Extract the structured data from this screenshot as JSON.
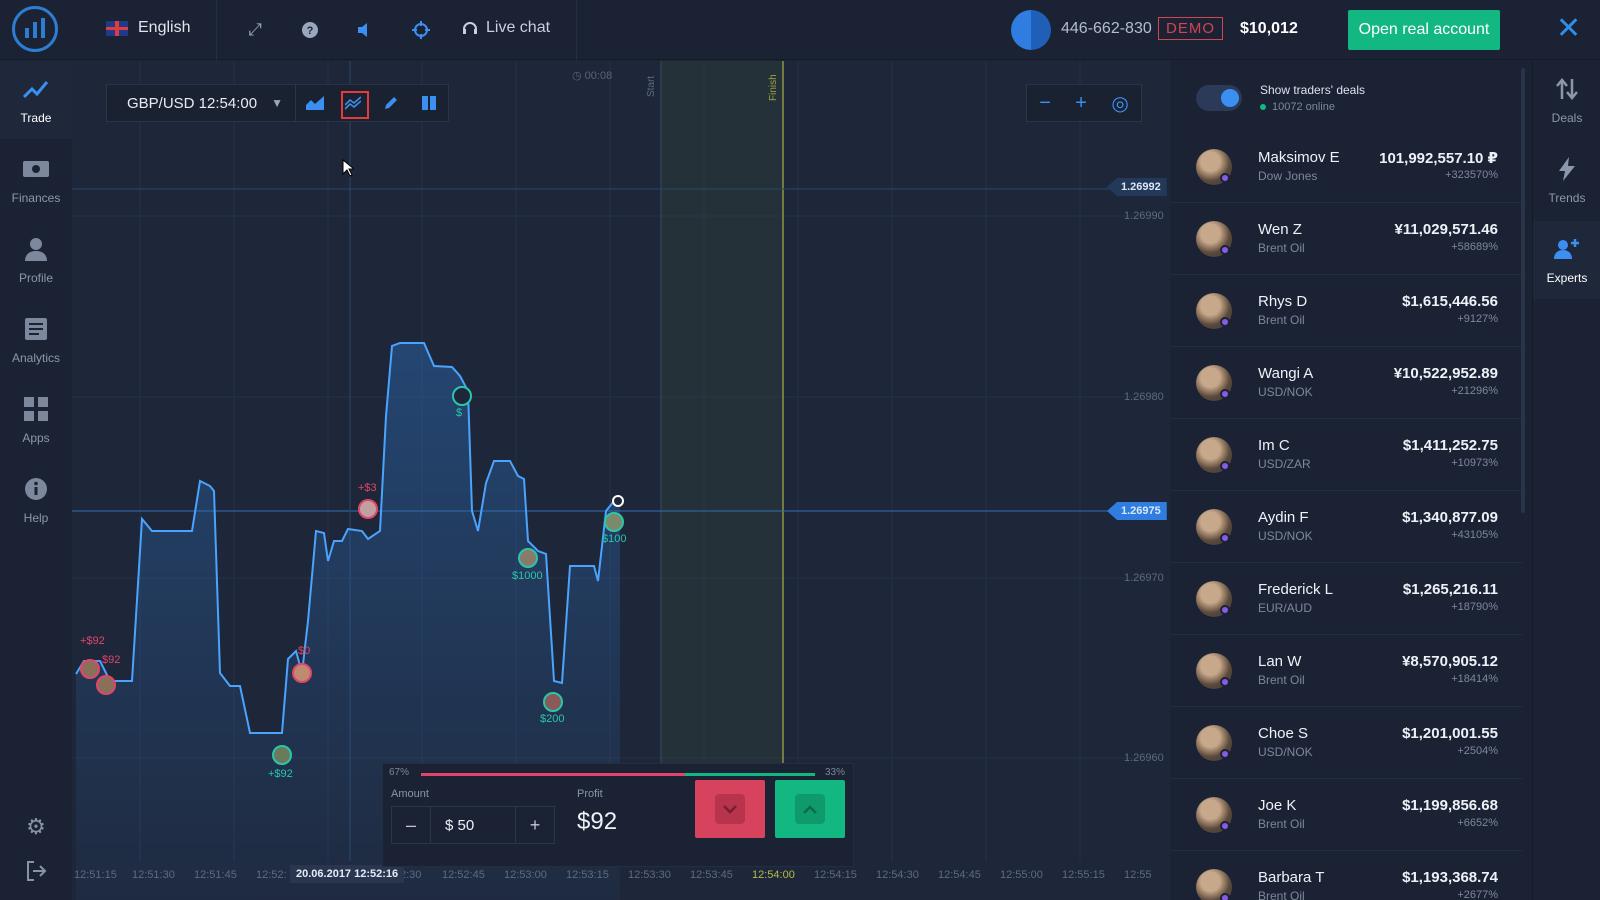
{
  "header": {
    "language": "English",
    "live_chat": "Live chat",
    "account_id": "446-662-830",
    "demo_badge": "DEMO",
    "balance": "$10,012",
    "open_real_label": "Open real account",
    "icons": [
      "fullscreen-icon",
      "help-icon",
      "sound-icon",
      "target-icon",
      "headset-icon",
      "close-icon"
    ]
  },
  "left_nav": [
    {
      "label": "Trade",
      "icon": "chart-line-icon",
      "active": true
    },
    {
      "label": "Finances",
      "icon": "wallet-icon",
      "active": false
    },
    {
      "label": "Profile",
      "icon": "user-icon",
      "active": false
    },
    {
      "label": "Analytics",
      "icon": "news-icon",
      "active": false
    },
    {
      "label": "Apps",
      "icon": "grid-icon",
      "active": false
    },
    {
      "label": "Help",
      "icon": "info-icon",
      "active": false
    }
  ],
  "chart": {
    "asset": "GBP/USD 12:54:00",
    "timer": "00:08",
    "start_label": "Start",
    "finish_label": "Finish",
    "price_tags": {
      "top": "1.26992",
      "current": "1.26975"
    },
    "price_axis": [
      "1.26990",
      "1.26980",
      "1.26970",
      "1.26960"
    ],
    "time_axis": [
      "12:51:15",
      "12:51:30",
      "12:51:45",
      "12:52:",
      "2:30",
      "12:52:45",
      "12:53:00",
      "12:53:15",
      "12:53:30",
      "12:53:45",
      "12:54:00",
      "12:54:15",
      "12:54:30",
      "12:54:45",
      "12:55:00",
      "12:55:15",
      "12:55"
    ],
    "time_highlight": "20.06.2017 12:52:16",
    "deal_labels": [
      {
        "text": "+$92",
        "color": "#e2456a"
      },
      {
        "text": "$92",
        "color": "#e2456a"
      },
      {
        "text": "+$92",
        "color": "#2bc6a8"
      },
      {
        "text": "$0",
        "color": "#e2456a"
      },
      {
        "text": "+$3",
        "color": "#e2456a"
      },
      {
        "text": "$",
        "color": "#2bc6a8"
      },
      {
        "text": "$1000",
        "color": "#2bc6a8"
      },
      {
        "text": "$200",
        "color": "#2bc6a8"
      },
      {
        "text": "$100",
        "color": "#2bc6a8"
      }
    ]
  },
  "trade_panel": {
    "down_pct": "67%",
    "up_pct": "33%",
    "amount_label": "Amount",
    "amount_value": "$ 50",
    "profit_label": "Profit",
    "profit_value": "$92",
    "minus": "–",
    "plus": "+"
  },
  "traders_panel": {
    "show_deals_label": "Show traders' deals",
    "online": "10072 online",
    "traders": [
      {
        "name": "Maksimov E",
        "asset": "Dow Jones",
        "amount": "101,992,557.10 ₽",
        "pct": "+323570%"
      },
      {
        "name": "Wen Z",
        "asset": "Brent Oil",
        "amount": "¥11,029,571.46",
        "pct": "+58689%"
      },
      {
        "name": "Rhys D",
        "asset": "Brent Oil",
        "amount": "$1,615,446.56",
        "pct": "+9127%"
      },
      {
        "name": "Wangi A",
        "asset": "USD/NOK",
        "amount": "¥10,522,952.89",
        "pct": "+21296%"
      },
      {
        "name": "Im C",
        "asset": "USD/ZAR",
        "amount": "$1,411,252.75",
        "pct": "+10973%"
      },
      {
        "name": "Aydin F",
        "asset": "USD/NOK",
        "amount": "$1,340,877.09",
        "pct": "+43105%"
      },
      {
        "name": "Frederick L",
        "asset": "EUR/AUD",
        "amount": "$1,265,216.11",
        "pct": "+18790%"
      },
      {
        "name": "Lan W",
        "asset": "Brent Oil",
        "amount": "¥8,570,905.12",
        "pct": "+18414%"
      },
      {
        "name": "Choe S",
        "asset": "USD/NOK",
        "amount": "$1,201,001.55",
        "pct": "+2504%"
      },
      {
        "name": "Joe K",
        "asset": "Brent Oil",
        "amount": "$1,199,856.68",
        "pct": "+6652%"
      },
      {
        "name": "Barbara T",
        "asset": "Brent Oil",
        "amount": "$1,193,368.74",
        "pct": "+2677%"
      }
    ]
  },
  "right_nav": [
    {
      "label": "Deals",
      "icon": "sort-arrows-icon",
      "active": false
    },
    {
      "label": "Trends",
      "icon": "lightning-icon",
      "active": false
    },
    {
      "label": "Experts",
      "icon": "add-user-icon",
      "active": true
    }
  ],
  "colors": {
    "accent": "#3a8ff0",
    "call": "#13b781",
    "put": "#d7435d",
    "background": "#1e2739"
  }
}
